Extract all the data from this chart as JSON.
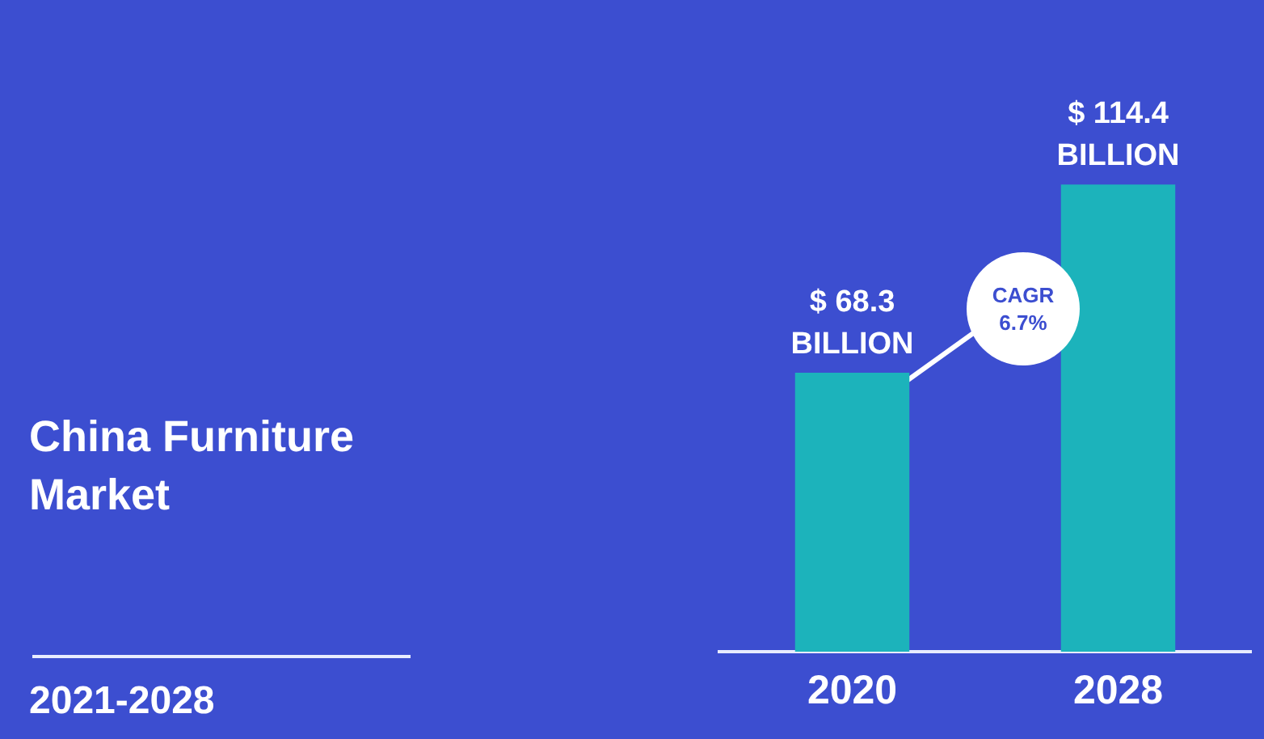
{
  "chart_data": {
    "type": "bar",
    "title": "China Furniture Market",
    "subtitle": "2021-2028",
    "categories": [
      "2020",
      "2028"
    ],
    "values": [
      68.3,
      114.4
    ],
    "color": "#1cb3bb",
    "value_labels": [
      "$ 68.3\nBILLION",
      "$ 114.4\nBILLION"
    ],
    "annotations": [
      "CAGR\n6.7%"
    ],
    "grid": false,
    "legend": false
  }
}
